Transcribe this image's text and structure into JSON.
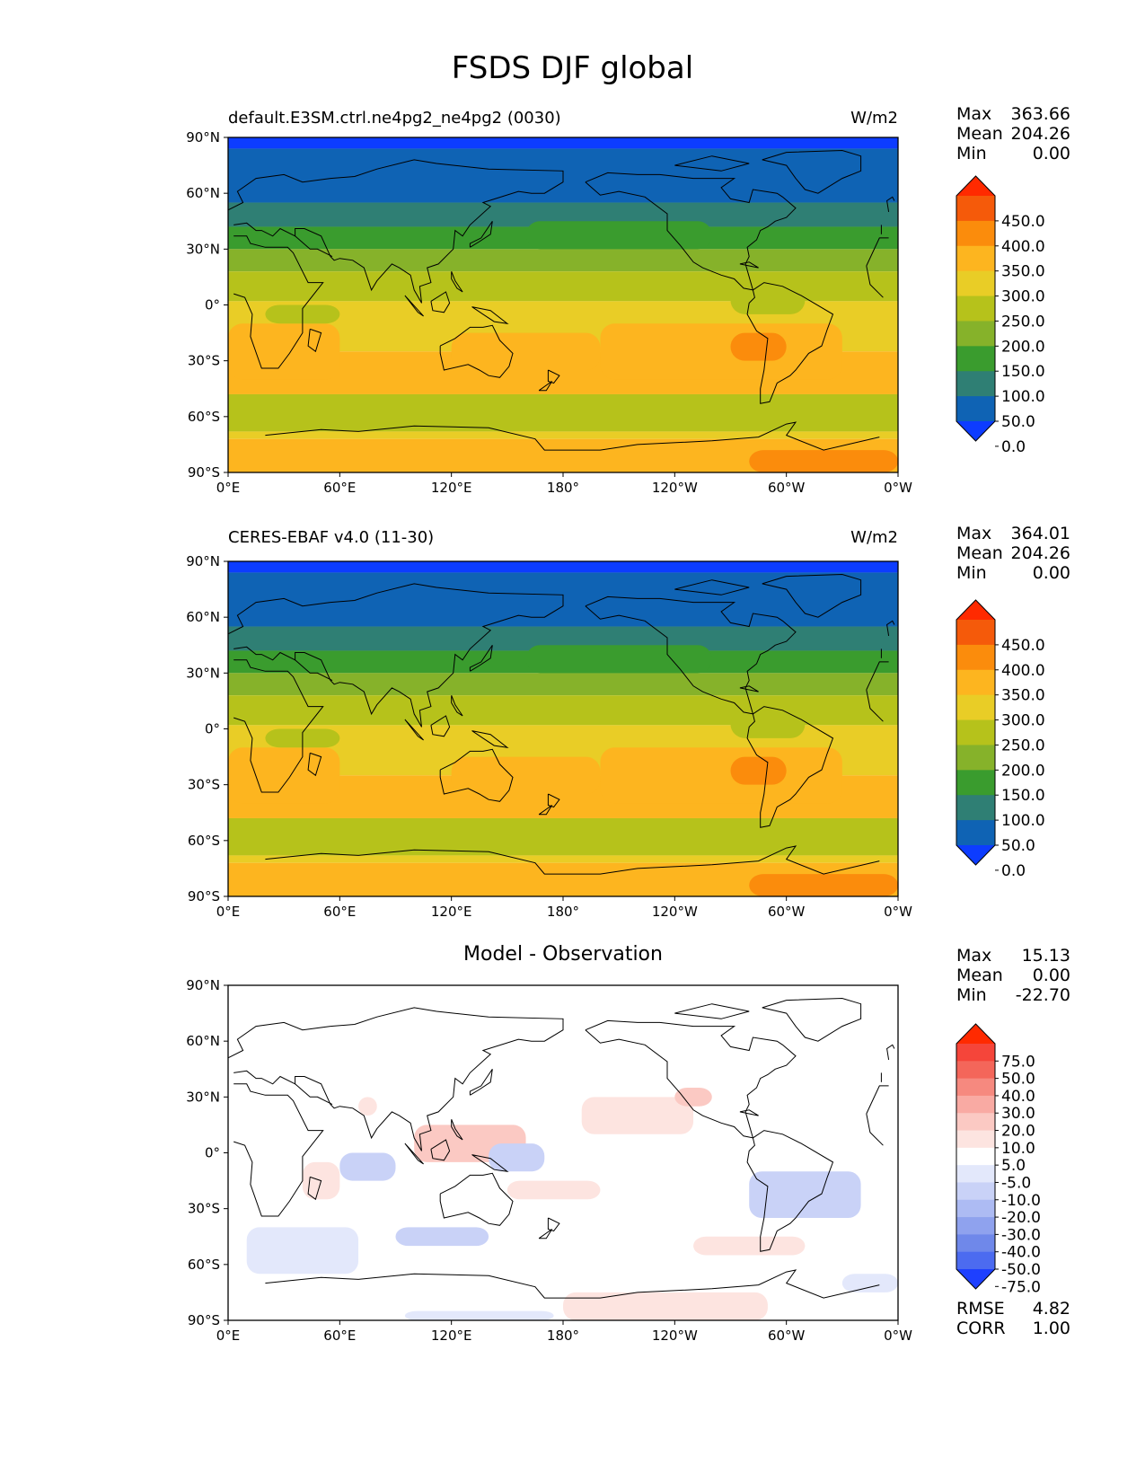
{
  "title": "FSDS DJF global",
  "lon_ticks": [
    "0°E",
    "60°E",
    "120°E",
    "180°",
    "120°W",
    "60°W",
    "0°W"
  ],
  "lat_ticks": [
    "90°N",
    "60°N",
    "30°N",
    "0°",
    "30°S",
    "60°S",
    "90°S"
  ],
  "panels": [
    {
      "label_left": "default.E3SM.ctrl.ne4pg2_ne4pg2 (0030)",
      "units": "W/m2",
      "center_title": "",
      "stats": [
        {
          "k": "Max",
          "v": "363.66"
        },
        {
          "k": "Mean",
          "v": "204.26"
        },
        {
          "k": "Min",
          "v": "0.00"
        }
      ],
      "extra_stats": [],
      "colorbar": {
        "levels": [
          "450.0",
          "400.0",
          "350.0",
          "300.0",
          "250.0",
          "200.0",
          "150.0",
          "100.0",
          "50.0",
          "0.0"
        ],
        "colors": [
          "#ff2a00",
          "#f55a0a",
          "#fb8c0c",
          "#fdb51f",
          "#e9cd26",
          "#b6c21b",
          "#86b22a",
          "#3a9c2e",
          "#2f7f74",
          "#0f63b4",
          "#0d3cff"
        ]
      },
      "field": "model"
    },
    {
      "label_left": "CERES-EBAF v4.0 (11-30)",
      "units": "W/m2",
      "center_title": "",
      "stats": [
        {
          "k": "Max",
          "v": "364.01"
        },
        {
          "k": "Mean",
          "v": "204.26"
        },
        {
          "k": "Min",
          "v": "0.00"
        }
      ],
      "extra_stats": [],
      "colorbar": {
        "levels": [
          "450.0",
          "400.0",
          "350.0",
          "300.0",
          "250.0",
          "200.0",
          "150.0",
          "100.0",
          "50.0",
          "0.0"
        ],
        "colors": [
          "#ff2a00",
          "#f55a0a",
          "#fb8c0c",
          "#fdb51f",
          "#e9cd26",
          "#b6c21b",
          "#86b22a",
          "#3a9c2e",
          "#2f7f74",
          "#0f63b4",
          "#0d3cff"
        ]
      },
      "field": "obs"
    },
    {
      "label_left": "",
      "units": "",
      "center_title": "Model - Observation",
      "stats": [
        {
          "k": "Max",
          "v": "15.13"
        },
        {
          "k": "Mean",
          "v": "0.00"
        },
        {
          "k": "Min",
          "v": "-22.70"
        }
      ],
      "extra_stats": [
        {
          "k": "RMSE",
          "v": "4.82"
        },
        {
          "k": "CORR",
          "v": "1.00"
        }
      ],
      "colorbar": {
        "levels": [
          "75.0",
          "50.0",
          "40.0",
          "30.0",
          "20.0",
          "10.0",
          "5.0",
          "-5.0",
          "-10.0",
          "-20.0",
          "-30.0",
          "-40.0",
          "-50.0",
          "-75.0"
        ],
        "colors": [
          "#ff2a00",
          "#f5453a",
          "#f4665a",
          "#f6897f",
          "#f9aaa3",
          "#fbc9c3",
          "#fde4e0",
          "#ffffff",
          "#e3e8fb",
          "#c9d2f7",
          "#adbbf3",
          "#8fa2ee",
          "#6f88ea",
          "#4c6bf0",
          "#1e40ff"
        ]
      },
      "field": "diff"
    }
  ]
}
